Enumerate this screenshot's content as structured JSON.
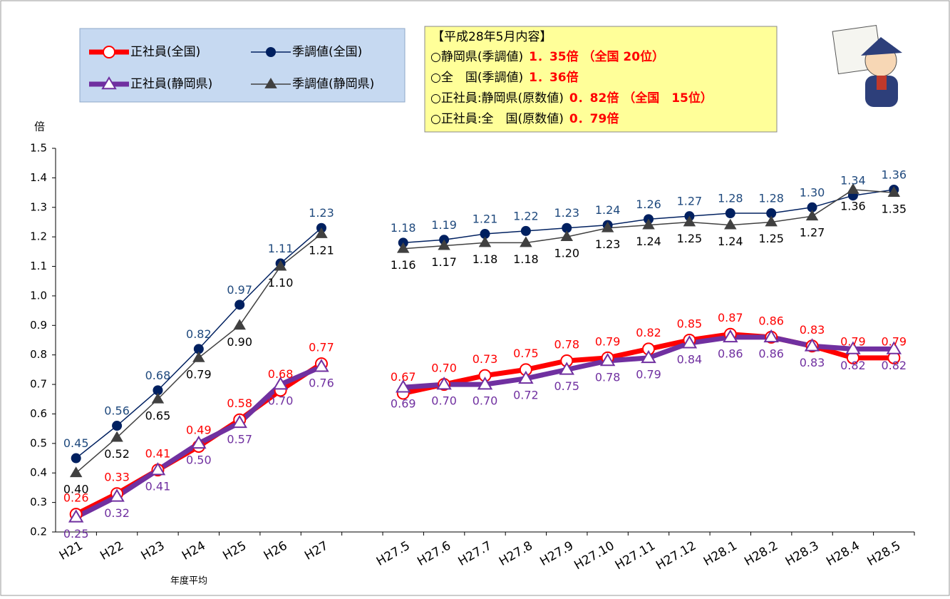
{
  "chart_data": {
    "type": "line",
    "y_unit": "倍",
    "x_note": "年度平均",
    "categories": [
      "H21",
      "H22",
      "H23",
      "H24",
      "H25",
      "H26",
      "H27",
      null,
      "H27.5",
      "H27.6",
      "H27.7",
      "H27.8",
      "H27.9",
      "H27.10",
      "H27.11",
      "H27.12",
      "H28.1",
      "H28.2",
      "H28.3",
      "H28.4",
      "H28.5"
    ],
    "ylim": [
      0.2,
      1.5
    ],
    "yticks": [
      0.2,
      0.3,
      0.4,
      0.5,
      0.6,
      0.7,
      0.8,
      0.9,
      {
        "value": 1,
        "label": "1.0"
      },
      1.1,
      1.2,
      1.3,
      1.4,
      1.5
    ],
    "series": [
      {
        "name": "正社員(全国)",
        "color": "#ff0000",
        "values": [
          0.26,
          0.33,
          0.41,
          0.49,
          0.58,
          0.68,
          0.77,
          null,
          0.67,
          0.7,
          0.73,
          0.75,
          0.78,
          0.79,
          0.82,
          0.85,
          0.87,
          0.86,
          0.83,
          0.79,
          0.79
        ],
        "value_labels": [
          "0.26",
          "0.33",
          "0.41",
          "0.49",
          "0.58",
          "0.68",
          "0.77",
          null,
          "0.67",
          "0.70",
          "0.73",
          "0.75",
          "0.78",
          "0.79",
          "0.82",
          "0.85",
          "0.87",
          "0.86",
          "0.83",
          "0.79",
          "0.79"
        ]
      },
      {
        "name": "季調値(全国)",
        "color": "#002060",
        "values": [
          0.45,
          0.56,
          0.68,
          0.82,
          0.97,
          1.11,
          1.23,
          null,
          1.18,
          1.19,
          1.21,
          1.22,
          1.23,
          1.24,
          1.26,
          1.27,
          1.28,
          1.28,
          1.3,
          1.34,
          1.36
        ],
        "value_labels": [
          "0.45",
          "0.56",
          "0.68",
          "0.82",
          "0.97",
          "1.11",
          "1.23",
          null,
          "1.18",
          "1.19",
          "1.21",
          "1.22",
          "1.23",
          "1.24",
          "1.26",
          "1.27",
          "1.28",
          "1.28",
          "1.30",
          "1.34",
          "1.36"
        ]
      },
      {
        "name": "正社員(静岡県)",
        "color": "#7030a0",
        "values": [
          0.25,
          0.32,
          0.41,
          0.5,
          0.57,
          0.7,
          0.76,
          null,
          0.69,
          0.7,
          0.7,
          0.72,
          0.75,
          0.78,
          0.79,
          0.84,
          0.86,
          0.86,
          0.83,
          0.82,
          0.82
        ],
        "value_labels": [
          "0.25",
          "0.32",
          "0.41",
          "0.50",
          "0.57",
          "0.70",
          "0.76",
          null,
          "0.69",
          "0.70",
          "0.70",
          "0.72",
          "0.75",
          "0.78",
          "0.79",
          "0.84",
          "0.86",
          "0.86",
          "0.83",
          "0.82",
          "0.82"
        ]
      },
      {
        "name": "季調値(静岡県)",
        "color": "#404040",
        "values": [
          0.4,
          0.52,
          0.65,
          0.79,
          0.9,
          1.1,
          1.21,
          null,
          1.16,
          1.17,
          1.18,
          1.18,
          1.2,
          1.23,
          1.24,
          1.25,
          1.24,
          1.25,
          1.27,
          1.36,
          1.35
        ],
        "value_labels": [
          "0.40",
          "0.52",
          "0.65",
          "0.79",
          "0.90",
          "1.10",
          "1.21",
          null,
          "1.16",
          "1.17",
          "1.18",
          "1.18",
          "1.20",
          "1.23",
          "1.24",
          "1.25",
          "1.24",
          "1.25",
          "1.27",
          "1.36",
          "1.35"
        ]
      }
    ],
    "info_box": {
      "title": "【平成28年5月内容】",
      "lines": [
        {
          "label": "○静岡県(季調値)",
          "value": "1．35倍 （全国 20位）"
        },
        {
          "label": "○全　国(季調値)",
          "value": "1．36倍"
        },
        {
          "label": "○正社員:静岡県(原数値)",
          "value": "0．82倍 （全国　15位）"
        },
        {
          "label": "○正社員:全　国(原数値)",
          "value": "0．79倍"
        }
      ]
    }
  }
}
